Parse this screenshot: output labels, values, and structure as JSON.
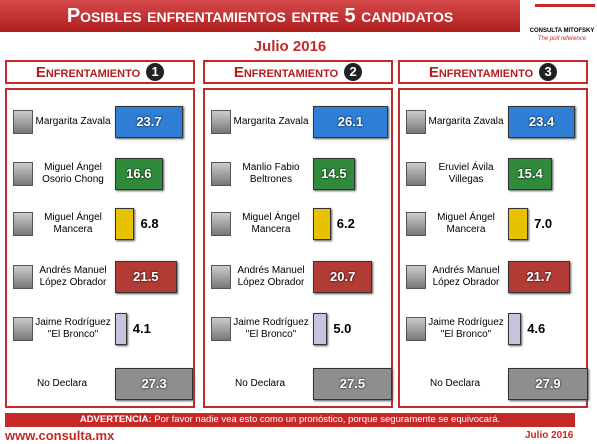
{
  "header": {
    "title": "Posibles enfrentamientos entre 5 candidatos",
    "subtitle": "Julio 2016",
    "logo": "CONSULTA MITOFSKY",
    "logo_tagline": "The poll reference"
  },
  "chart_data": [
    {
      "type": "bar",
      "label": "Enfrentamiento",
      "number": "1",
      "categories": [
        "Margarita Zavala",
        "Miguel Ángel\nOsorio Chong",
        "Miguel Ángel\nMancera",
        "Andrés Manuel\nLópez Obrador",
        "Jaime Rodríguez\n\"El Bronco\"",
        "No Declara"
      ],
      "values": [
        23.7,
        16.6,
        6.8,
        21.5,
        4.1,
        27.3
      ],
      "colors": [
        "#2f7fd6",
        "#2f8a3c",
        "#e6c200",
        "#b23b35",
        "#c8c3df",
        "#8e8e8e"
      ]
    },
    {
      "type": "bar",
      "label": "Enfrentamiento",
      "number": "2",
      "categories": [
        "Margarita Zavala",
        "Manlio Fabio\nBeltrones",
        "Miguel Ángel\nMancera",
        "Andrés Manuel\nLópez Obrador",
        "Jaime Rodríguez\n\"El Bronco\"",
        "No Declara"
      ],
      "values": [
        26.1,
        14.5,
        6.2,
        20.7,
        5.0,
        27.5
      ],
      "value_labels": [
        "26.1",
        "14.5",
        "6.2",
        "20.7",
        "5.0",
        "27.5"
      ],
      "colors": [
        "#2f7fd6",
        "#2f8a3c",
        "#e6c200",
        "#b23b35",
        "#c8c3df",
        "#8e8e8e"
      ]
    },
    {
      "type": "bar",
      "label": "Enfrentamiento",
      "number": "3",
      "categories": [
        "Margarita Zavala",
        "Eruviel Ávila\nVillegas",
        "Miguel Ángel\nMancera",
        "Andrés Manuel\nLópez Obrador",
        "Jaime Rodríguez\n\"El Bronco\"",
        "No Declara"
      ],
      "values": [
        23.4,
        15.4,
        7.0,
        21.7,
        4.6,
        27.9
      ],
      "value_labels": [
        "23.4",
        "15.4",
        "7.0",
        "21.7",
        "4.6",
        "27.9"
      ],
      "colors": [
        "#2f7fd6",
        "#2f8a3c",
        "#e6c200",
        "#b23b35",
        "#c8c3df",
        "#8e8e8e"
      ]
    }
  ],
  "warning": {
    "label": "ADVERTENCIA:",
    "text": "Por favor nadie vea esto como un pronóstico, porque seguramente se equivocará."
  },
  "footer": {
    "url": "www.consulta.mx",
    "date": "Julio 2016"
  }
}
